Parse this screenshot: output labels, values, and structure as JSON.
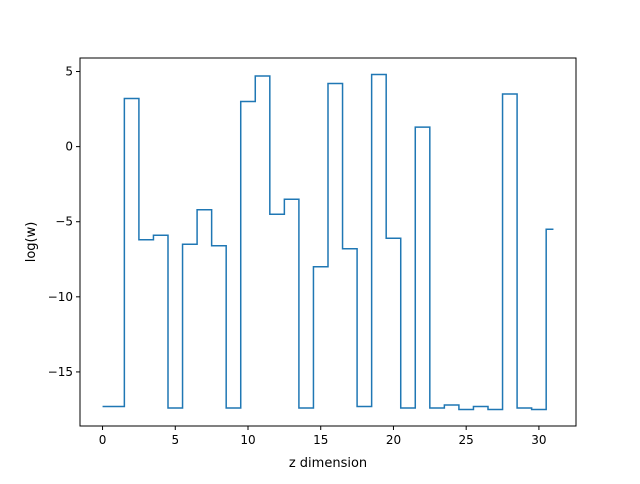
{
  "chart_data": {
    "type": "line",
    "drawstyle": "steps-mid",
    "title": "",
    "xlabel": "z dimension",
    "ylabel": "log(w)",
    "xlim": [
      -1.55,
      32.55
    ],
    "ylim": [
      -18.6,
      5.9
    ],
    "x_ticks": [
      0,
      5,
      10,
      15,
      20,
      25,
      30
    ],
    "y_ticks": [
      5,
      0,
      -5,
      -10,
      -15
    ],
    "x_tick_labels": [
      "0",
      "5",
      "10",
      "15",
      "20",
      "25",
      "30"
    ],
    "y_tick_labels": [
      "5",
      "0",
      "−5",
      "−10",
      "−15"
    ],
    "grid": false,
    "legend": "none",
    "series": [
      {
        "color": "#1f77b4",
        "x": [
          0,
          1,
          2,
          3,
          4,
          5,
          6,
          7,
          8,
          9,
          10,
          11,
          12,
          13,
          14,
          15,
          16,
          17,
          18,
          19,
          20,
          21,
          22,
          23,
          24,
          25,
          26,
          27,
          28,
          29,
          30,
          31
        ],
        "y": [
          -17.3,
          -17.3,
          3.2,
          -6.2,
          -5.9,
          -17.4,
          -6.5,
          -4.2,
          -6.6,
          -17.4,
          3.0,
          4.7,
          -4.5,
          -3.5,
          -17.4,
          -8.0,
          4.2,
          -6.8,
          -17.3,
          4.8,
          -6.1,
          -17.4,
          1.3,
          -17.4,
          -17.2,
          -17.5,
          -17.3,
          -17.5,
          3.5,
          -17.4,
          -17.5,
          -5.5
        ]
      }
    ]
  }
}
